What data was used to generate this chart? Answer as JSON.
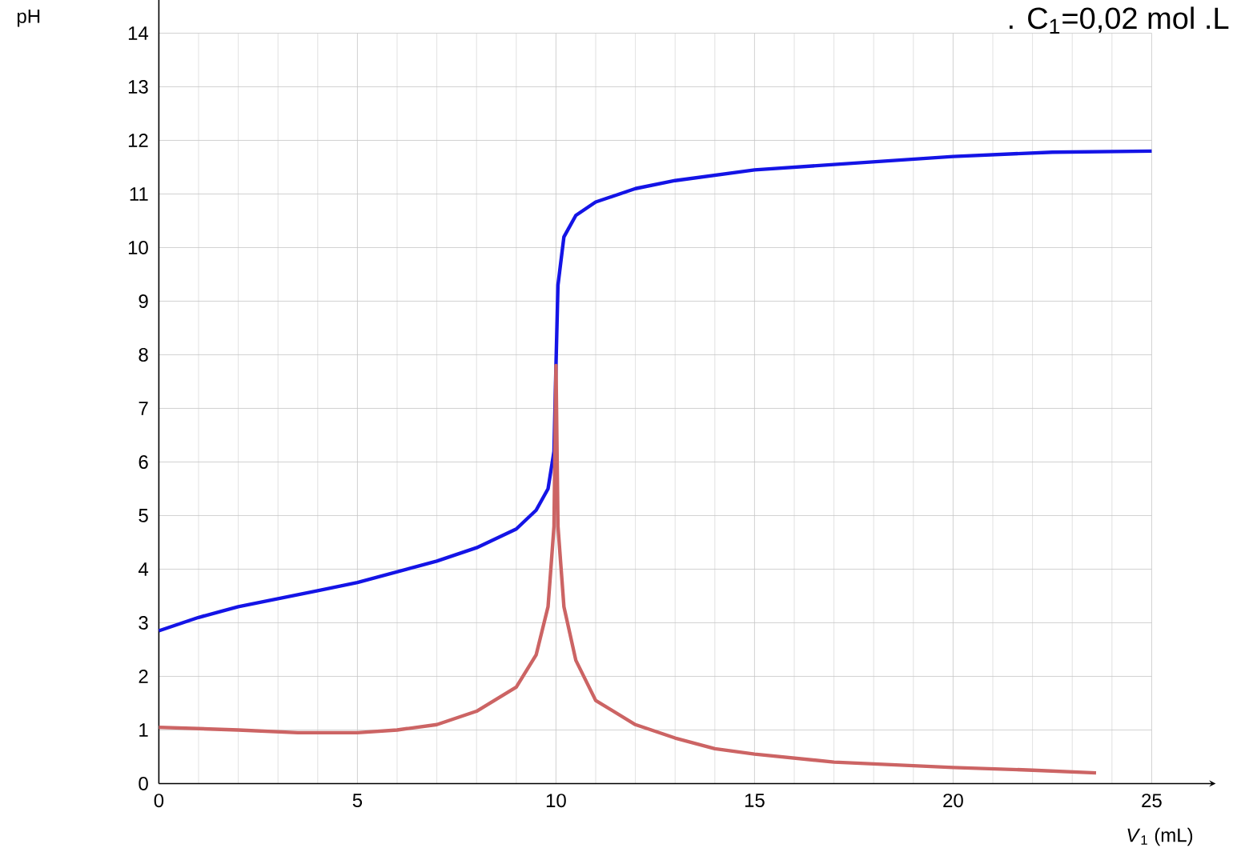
{
  "chart_data": {
    "type": "line",
    "xlabel": "*V*$_{1}$ (mL)",
    "ylabel": "pH",
    "annotations": [
      ". C$_{1}$=0,02 mol .L"
    ],
    "xlim": [
      0,
      25
    ],
    "ylim": [
      0,
      14
    ],
    "xticks": [
      0,
      5,
      10,
      15,
      20,
      25
    ],
    "yticks": [
      0,
      1,
      2,
      3,
      4,
      5,
      6,
      7,
      8,
      9,
      10,
      11,
      12,
      13,
      14
    ],
    "grid": true,
    "marker": "none",
    "line_style": "solid",
    "series": [
      {
        "color": "#1414e6",
        "x": [
          0,
          1,
          2,
          3,
          4,
          5,
          6,
          7,
          8,
          9,
          9.5,
          9.8,
          9.95,
          10,
          10.05,
          10.2,
          10.5,
          11,
          12,
          13,
          14,
          15,
          17,
          20,
          22.5,
          25
        ],
        "values": [
          2.85,
          3.1,
          3.3,
          3.45,
          3.6,
          3.75,
          3.95,
          4.15,
          4.4,
          4.75,
          5.1,
          5.5,
          6.2,
          7.8,
          9.3,
          10.2,
          10.6,
          10.85,
          11.1,
          11.25,
          11.35,
          11.45,
          11.55,
          11.7,
          11.78,
          11.8
        ]
      },
      {
        "color": "#cc6464",
        "x": [
          0,
          2,
          3.5,
          5,
          6,
          7,
          8,
          9,
          9.5,
          9.8,
          9.95,
          10,
          10.05,
          10.2,
          10.5,
          11,
          12,
          13,
          14,
          15,
          17,
          20,
          22,
          23.6
        ],
        "values": [
          1.05,
          1.0,
          0.95,
          0.95,
          1.0,
          1.1,
          1.35,
          1.8,
          2.4,
          3.3,
          4.8,
          7.8,
          4.8,
          3.3,
          2.3,
          1.55,
          1.1,
          0.85,
          0.65,
          0.55,
          0.4,
          0.3,
          0.25,
          0.2
        ]
      }
    ]
  }
}
